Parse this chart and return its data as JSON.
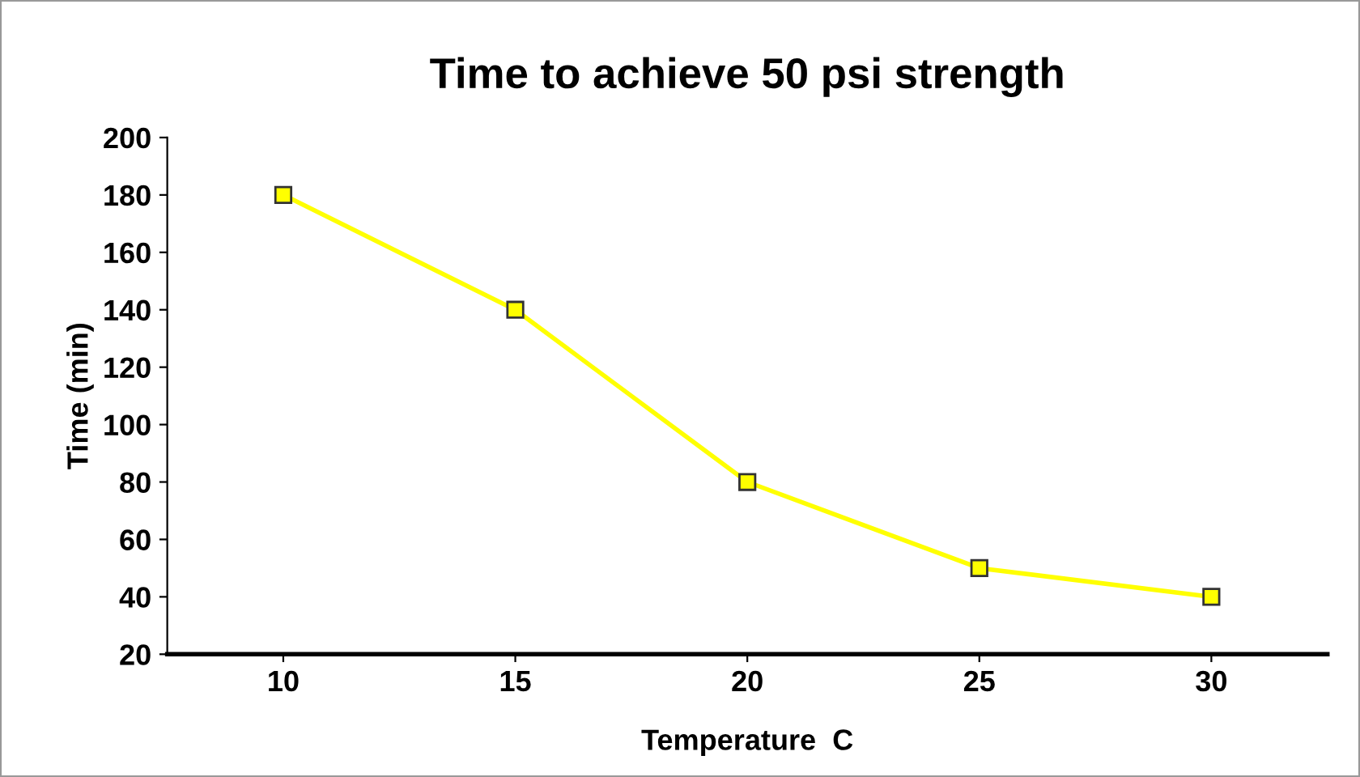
{
  "chart_data": {
    "type": "line",
    "title": "Time to achieve 50 psi strength",
    "xlabel": "Temperature  C",
    "ylabel": "Time (min)",
    "categories": [
      "10",
      "15",
      "20",
      "25",
      "30"
    ],
    "series": [
      {
        "color": "#ffff00",
        "values": [
          180,
          140,
          80,
          50,
          40
        ]
      }
    ],
    "ylim": [
      20,
      200
    ],
    "yticks": [
      20,
      40,
      60,
      80,
      100,
      120,
      140,
      160,
      180,
      200
    ],
    "grid": false,
    "legend": false,
    "marker": "square",
    "line_style": "solid"
  }
}
